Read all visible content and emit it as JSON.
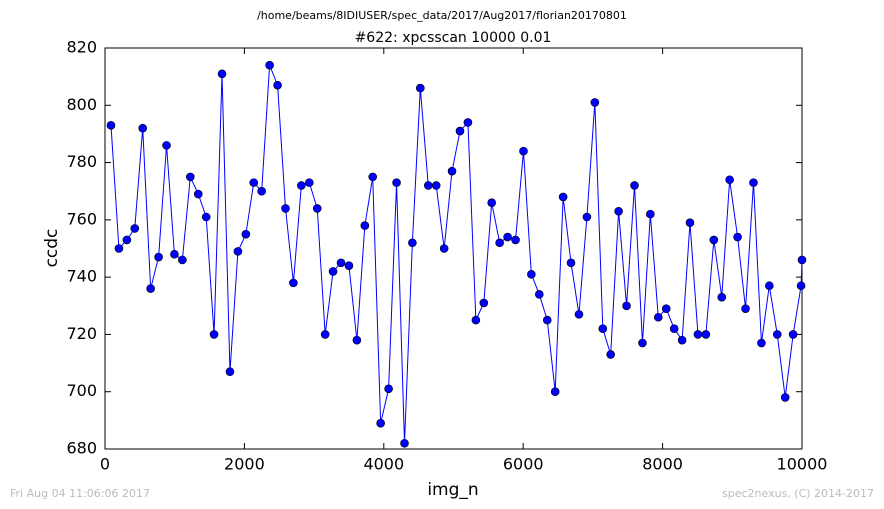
{
  "chart_data": {
    "type": "line",
    "suptitle": "/home/beams/8IDIUSER/spec_data/2017/Aug2017/florian20170801",
    "title": "#622: xpcsscan 10000 0.01",
    "xlabel": "img_n",
    "ylabel": "ccdc",
    "xlim": [
      0,
      10000
    ],
    "xticks": [
      0,
      2000,
      4000,
      6000,
      8000,
      10000
    ],
    "ylim": [
      680,
      820
    ],
    "yticks": [
      680,
      700,
      720,
      740,
      760,
      780,
      800,
      820
    ],
    "x": [
      86,
      200,
      314,
      427,
      541,
      655,
      769,
      883,
      996,
      1110,
      1224,
      1338,
      1452,
      1565,
      1679,
      1793,
      1907,
      2021,
      2134,
      2248,
      2362,
      2476,
      2590,
      2703,
      2817,
      2931,
      3045,
      3159,
      3272,
      3386,
      3500,
      3614,
      3728,
      3841,
      3955,
      4069,
      4183,
      4297,
      4410,
      4524,
      4638,
      4752,
      4866,
      4979,
      5093,
      5207,
      5321,
      5435,
      5548,
      5662,
      5776,
      5890,
      6004,
      6117,
      6231,
      6345,
      6459,
      6573,
      6686,
      6800,
      6914,
      7028,
      7142,
      7255,
      7369,
      7483,
      7597,
      7711,
      7824,
      7938,
      8052,
      8166,
      8280,
      8393,
      8507,
      8621,
      8735,
      8849,
      8962,
      9076,
      9190,
      9304,
      9418,
      9531,
      9645,
      9759,
      9873,
      9987,
      10000
    ],
    "series": [
      {
        "color": "#0000ff",
        "marker": "o",
        "values": [
          793,
          750,
          753,
          757,
          792,
          736,
          747,
          786,
          748,
          746,
          775,
          769,
          761,
          720,
          811,
          707,
          749,
          755,
          773,
          770,
          814,
          807,
          764,
          738,
          772,
          773,
          764,
          720,
          742,
          745,
          744,
          718,
          758,
          775,
          689,
          701,
          773,
          682,
          752,
          806,
          772,
          772,
          750,
          777,
          791,
          794,
          725,
          731,
          766,
          752,
          754,
          753,
          784,
          741,
          734,
          725,
          700,
          768,
          745,
          727,
          761,
          801,
          722,
          713,
          763,
          730,
          772,
          717,
          762,
          726,
          729,
          722,
          718,
          759,
          720,
          720,
          753,
          733,
          774,
          754,
          729,
          773,
          717,
          737,
          720,
          698,
          720,
          737,
          746
        ]
      }
    ]
  },
  "footer": {
    "left": "Fri Aug 04 11:06:06 2017",
    "right": "spec2nexus, (C) 2014-2017"
  }
}
